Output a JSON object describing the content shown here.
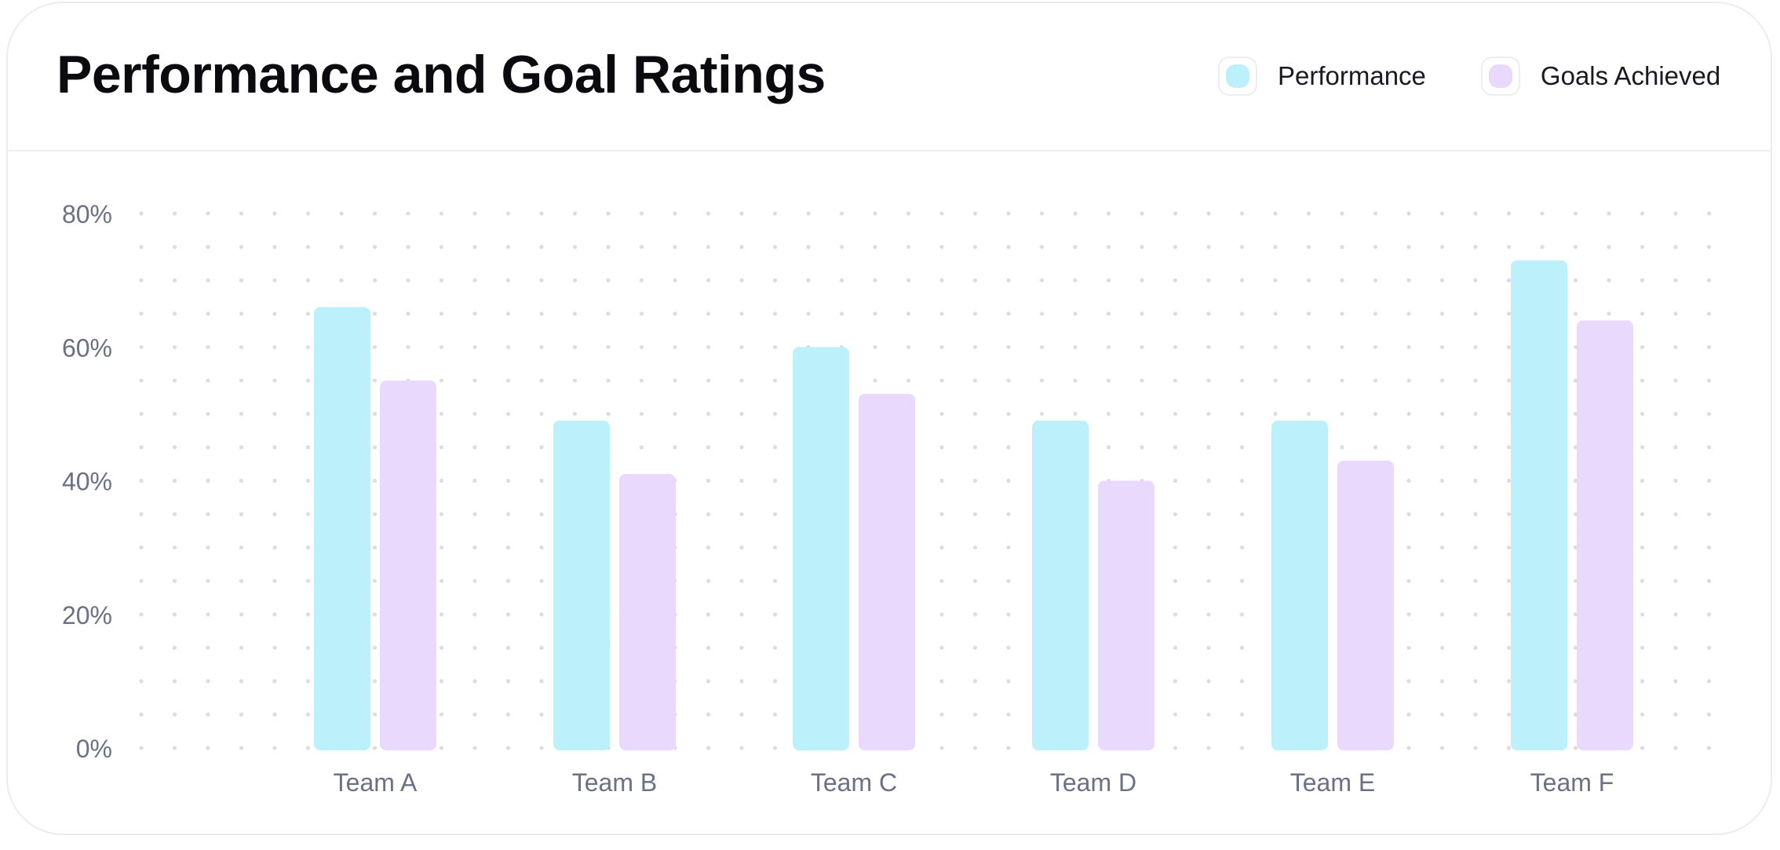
{
  "header": {
    "title": "Performance and Goal Ratings"
  },
  "legend": [
    {
      "label": "Performance",
      "color": "#bcf0fb"
    },
    {
      "label": "Goals Achieved",
      "color": "#e8d9fd"
    }
  ],
  "chart_data": {
    "type": "bar",
    "title": "Performance and Goal Ratings",
    "xlabel": "",
    "ylabel": "",
    "categories": [
      "Team A",
      "Team B",
      "Team C",
      "Team D",
      "Team E",
      "Team F"
    ],
    "series": [
      {
        "name": "Performance",
        "color": "#bcf0fb",
        "values": [
          66,
          49,
          60,
          49,
          49,
          73
        ]
      },
      {
        "name": "Goals Achieved",
        "color": "#e8d9fd",
        "values": [
          55,
          41,
          53,
          40,
          43,
          64
        ]
      }
    ],
    "ylim": [
      0,
      80
    ],
    "yticks": [
      0,
      20,
      40,
      60,
      80
    ],
    "ytick_labels": [
      "0%",
      "20%",
      "40%",
      "60%",
      "80%"
    ],
    "grid": "dotted",
    "legend_position": "top-right"
  }
}
